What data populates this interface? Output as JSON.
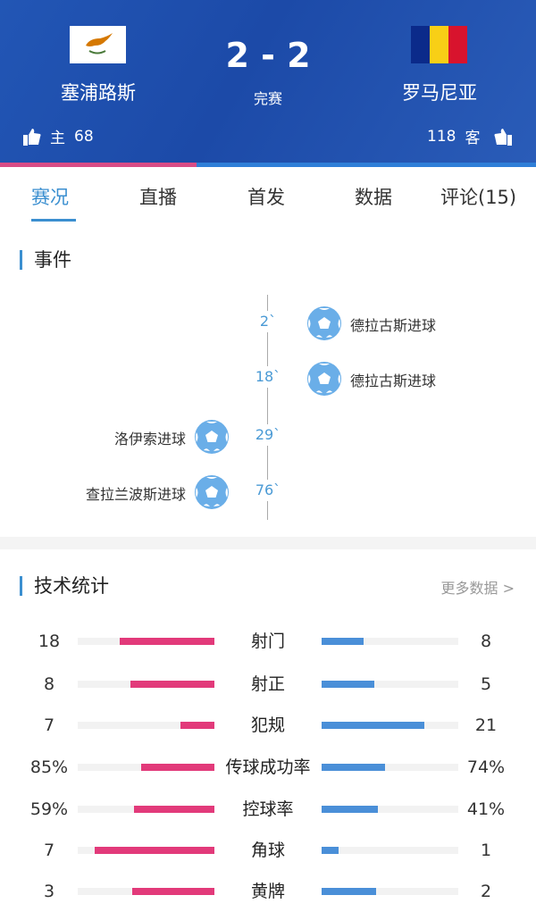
{
  "header": {
    "home": {
      "name": "塞浦路斯",
      "likes_label": "主",
      "likes": "68"
    },
    "away": {
      "name": "罗马尼亚",
      "likes_label": "客",
      "likes": "118"
    },
    "score": "2 - 2",
    "status": "完赛",
    "colors": {
      "home": "#e23a7a",
      "away": "#2f7fd8"
    }
  },
  "tabs": [
    {
      "label": "赛况",
      "active": true
    },
    {
      "label": "直播"
    },
    {
      "label": "首发"
    },
    {
      "label": "数据"
    },
    {
      "label": "评论(15)"
    }
  ],
  "events": {
    "title": "事件",
    "items": [
      {
        "minute": "2`",
        "side": "away",
        "text": "德拉古斯进球",
        "icon": "football-icon"
      },
      {
        "minute": "18`",
        "side": "away",
        "text": "德拉古斯进球",
        "icon": "football-icon"
      },
      {
        "minute": "29`",
        "side": "home",
        "text": "洛伊索进球",
        "icon": "football-icon"
      },
      {
        "minute": "76`",
        "side": "home",
        "text": "查拉兰波斯进球",
        "icon": "football-icon"
      }
    ]
  },
  "stats": {
    "title": "技术统计",
    "more": "更多数据 >",
    "rows": [
      {
        "label": "射门",
        "home": "18",
        "away": "8"
      },
      {
        "label": "射正",
        "home": "8",
        "away": "5"
      },
      {
        "label": "犯规",
        "home": "7",
        "away": "21"
      },
      {
        "label": "传球成功率",
        "home": "85%",
        "away": "74%"
      },
      {
        "label": "控球率",
        "home": "59%",
        "away": "41%"
      },
      {
        "label": "角球",
        "home": "7",
        "away": "1"
      },
      {
        "label": "黄牌",
        "home": "3",
        "away": "2"
      }
    ]
  }
}
